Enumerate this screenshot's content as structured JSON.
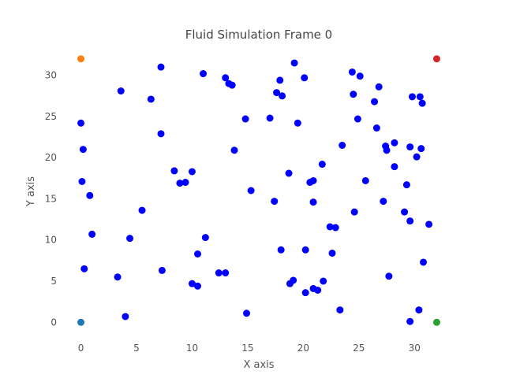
{
  "chart_data": {
    "type": "scatter",
    "title": "Fluid Simulation Frame 0",
    "xlabel": "X axis",
    "ylabel": "Y axis",
    "xlim": [
      -1.6,
      33.6
    ],
    "ylim": [
      -1.6,
      33.6
    ],
    "xticks": [
      0,
      5,
      10,
      15,
      20,
      25,
      30
    ],
    "yticks": [
      0,
      5,
      10,
      15,
      20,
      25,
      30
    ],
    "grid": false,
    "series": [
      {
        "color": "#0000ff",
        "marker_size": 8,
        "points": [
          [
            0.0,
            24.2
          ],
          [
            0.2,
            21.0
          ],
          [
            0.1,
            17.1
          ],
          [
            0.8,
            15.4
          ],
          [
            1.0,
            10.7
          ],
          [
            0.3,
            6.5
          ],
          [
            3.3,
            5.5
          ],
          [
            4.0,
            0.7
          ],
          [
            3.6,
            28.1
          ],
          [
            4.4,
            10.2
          ],
          [
            5.5,
            13.6
          ],
          [
            6.3,
            27.1
          ],
          [
            7.2,
            31.0
          ],
          [
            7.2,
            22.9
          ],
          [
            7.3,
            6.3
          ],
          [
            8.4,
            18.4
          ],
          [
            8.9,
            16.9
          ],
          [
            9.4,
            17.0
          ],
          [
            10.0,
            18.3
          ],
          [
            10.0,
            4.7
          ],
          [
            10.5,
            4.4
          ],
          [
            10.5,
            8.3
          ],
          [
            11.0,
            30.2
          ],
          [
            11.2,
            10.3
          ],
          [
            12.4,
            6.0
          ],
          [
            13.0,
            6.0
          ],
          [
            13.0,
            29.7
          ],
          [
            13.3,
            29.0
          ],
          [
            13.6,
            28.8
          ],
          [
            13.8,
            20.9
          ],
          [
            14.8,
            24.7
          ],
          [
            15.3,
            16.0
          ],
          [
            14.9,
            1.1
          ],
          [
            17.0,
            24.8
          ],
          [
            17.4,
            14.7
          ],
          [
            17.6,
            27.9
          ],
          [
            17.9,
            29.4
          ],
          [
            18.1,
            27.5
          ],
          [
            18.0,
            8.8
          ],
          [
            18.7,
            18.1
          ],
          [
            18.8,
            4.7
          ],
          [
            19.1,
            5.1
          ],
          [
            19.2,
            31.5
          ],
          [
            19.5,
            24.2
          ],
          [
            20.1,
            29.7
          ],
          [
            20.2,
            8.8
          ],
          [
            20.2,
            3.6
          ],
          [
            20.6,
            17.0
          ],
          [
            20.9,
            17.2
          ],
          [
            20.9,
            14.6
          ],
          [
            20.9,
            4.1
          ],
          [
            21.3,
            3.9
          ],
          [
            21.7,
            19.2
          ],
          [
            21.8,
            5.0
          ],
          [
            22.4,
            11.6
          ],
          [
            22.6,
            8.4
          ],
          [
            22.9,
            11.5
          ],
          [
            23.3,
            1.5
          ],
          [
            23.5,
            21.5
          ],
          [
            24.4,
            30.4
          ],
          [
            24.5,
            27.7
          ],
          [
            24.6,
            13.4
          ],
          [
            24.9,
            24.7
          ],
          [
            25.1,
            29.9
          ],
          [
            25.6,
            17.2
          ],
          [
            26.4,
            26.8
          ],
          [
            26.6,
            23.6
          ],
          [
            26.8,
            28.6
          ],
          [
            27.2,
            14.7
          ],
          [
            27.4,
            21.4
          ],
          [
            27.5,
            20.9
          ],
          [
            27.7,
            5.6
          ],
          [
            28.2,
            21.8
          ],
          [
            28.2,
            18.9
          ],
          [
            29.1,
            13.4
          ],
          [
            29.3,
            16.7
          ],
          [
            29.6,
            12.3
          ],
          [
            29.6,
            21.3
          ],
          [
            29.8,
            27.4
          ],
          [
            30.2,
            20.1
          ],
          [
            30.5,
            27.4
          ],
          [
            30.6,
            21.1
          ],
          [
            30.7,
            26.6
          ],
          [
            30.8,
            7.3
          ],
          [
            30.4,
            1.5
          ],
          [
            29.6,
            0.1
          ],
          [
            31.3,
            11.9
          ]
        ]
      },
      {
        "color": "#1f77b4",
        "marker_size": 8,
        "points": [
          [
            0.0,
            0.0
          ]
        ]
      },
      {
        "color": "#ff7f0e",
        "marker_size": 8,
        "points": [
          [
            0.0,
            32.0
          ]
        ]
      },
      {
        "color": "#2ca02c",
        "marker_size": 8,
        "points": [
          [
            32.0,
            0.0
          ]
        ]
      },
      {
        "color": "#d62728",
        "marker_size": 8,
        "points": [
          [
            32.0,
            32.0
          ]
        ]
      }
    ]
  }
}
